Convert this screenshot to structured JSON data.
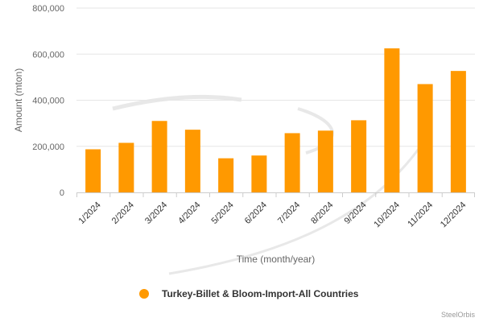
{
  "chart_data": {
    "type": "bar",
    "categories": [
      "1/2024",
      "2/2024",
      "3/2024",
      "4/2024",
      "5/2024",
      "6/2024",
      "7/2024",
      "8/2024",
      "9/2024",
      "10/2024",
      "11/2024",
      "12/2024"
    ],
    "series": [
      {
        "name": "Turkey-Billet & Bloom-Import-All Countries",
        "values": [
          187000,
          215000,
          310000,
          272000,
          148000,
          160000,
          257000,
          268000,
          313000,
          625000,
          470000,
          527000
        ],
        "color": "#ff9900"
      }
    ],
    "xlabel": "Time (month/year)",
    "ylabel": "Amount (mton)",
    "ylim": [
      0,
      800000
    ],
    "yticks": [
      0,
      200000,
      400000,
      600000,
      800000
    ],
    "ytick_labels": [
      "0",
      "200,000",
      "400,000",
      "600,000",
      "800,000"
    ],
    "grid": true,
    "legend_position": "bottom-center",
    "credit": "SteelOrbis"
  }
}
